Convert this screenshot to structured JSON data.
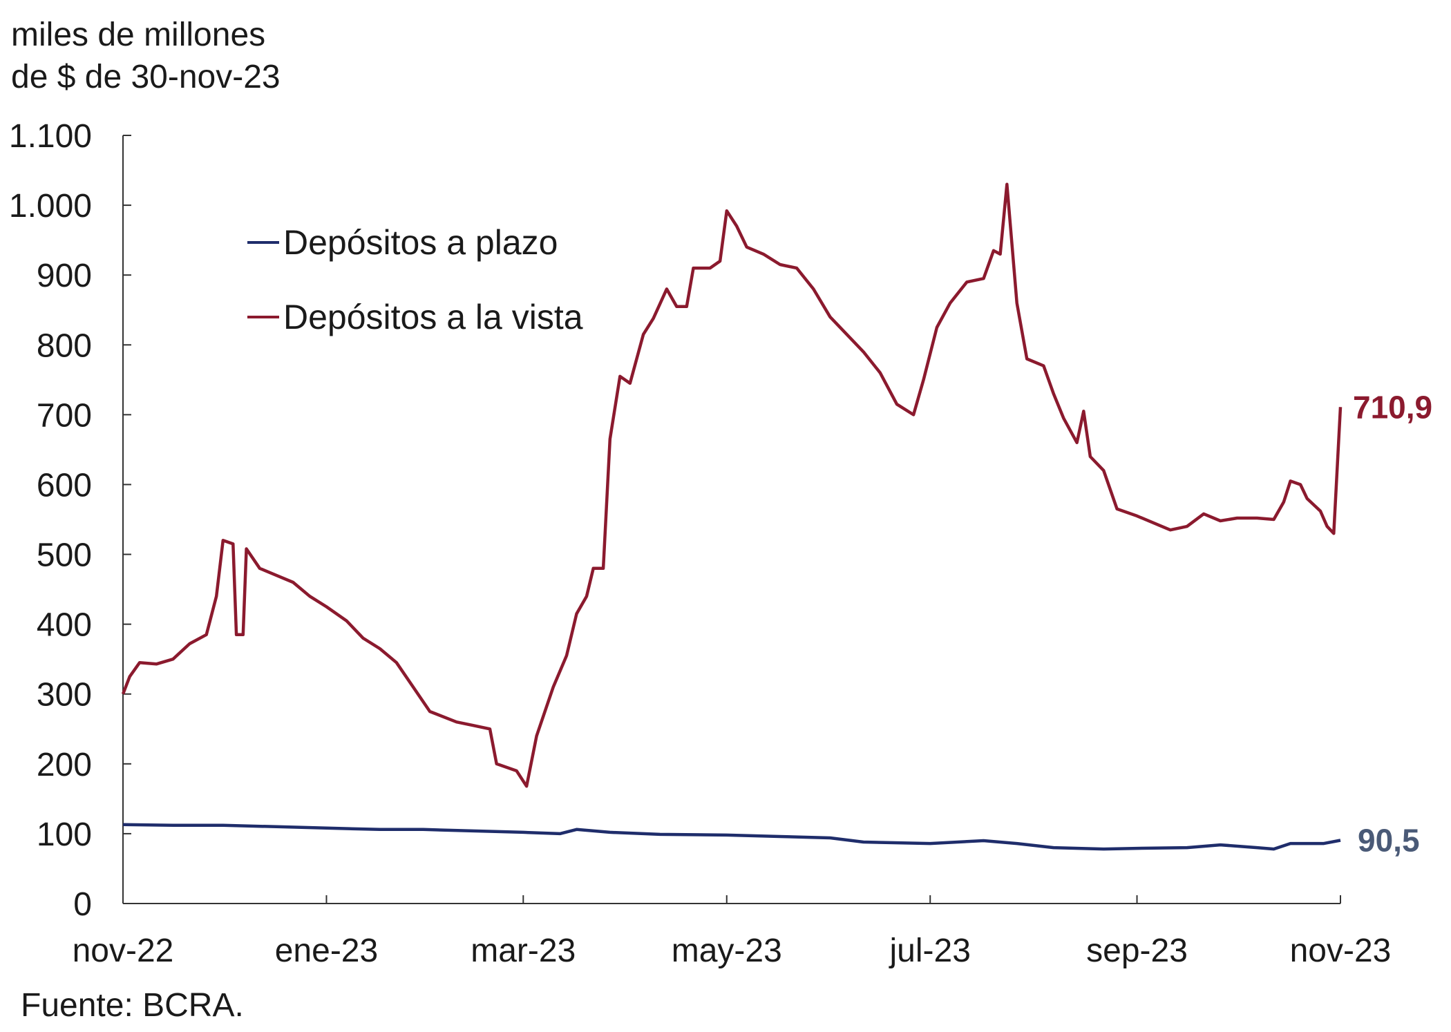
{
  "chart_data": {
    "type": "line",
    "unit_label_lines": [
      "miles de millones",
      "de $ de 30-nov-23"
    ],
    "ylim": [
      0,
      1100
    ],
    "y_ticks": [
      0,
      100,
      200,
      300,
      400,
      500,
      600,
      700,
      800,
      900,
      1000,
      1100
    ],
    "y_tick_labels": [
      "0",
      "100",
      "200",
      "300",
      "400",
      "500",
      "600",
      "700",
      "800",
      "900",
      "1.000",
      "1.100"
    ],
    "xlim": [
      "2022-11-30",
      "2023-11-30"
    ],
    "x_ticks": [
      "2022-11-30",
      "2023-01-30",
      "2023-03-30",
      "2023-05-30",
      "2023-07-30",
      "2023-09-30",
      "2023-11-30"
    ],
    "x_tick_labels": [
      "nov-22",
      "ene-23",
      "mar-23",
      "may-23",
      "jul-23",
      "sep-23",
      "nov-23"
    ],
    "grid": false,
    "legend_position": "upper-left",
    "series": [
      {
        "name": "Depósitos a plazo",
        "color": "#1f2d6b",
        "end_label": "90,5",
        "end_label_color": "#4a5a77",
        "points": [
          [
            "2022-11-30",
            113
          ],
          [
            "2022-12-15",
            112
          ],
          [
            "2022-12-30",
            112
          ],
          [
            "2023-01-15",
            110
          ],
          [
            "2023-01-30",
            108
          ],
          [
            "2023-02-15",
            106
          ],
          [
            "2023-02-28",
            106
          ],
          [
            "2023-03-15",
            104
          ],
          [
            "2023-03-30",
            102
          ],
          [
            "2023-04-10",
            100
          ],
          [
            "2023-04-15",
            106
          ],
          [
            "2023-04-25",
            102
          ],
          [
            "2023-05-10",
            99
          ],
          [
            "2023-05-30",
            98
          ],
          [
            "2023-06-15",
            96
          ],
          [
            "2023-06-30",
            94
          ],
          [
            "2023-07-10",
            88
          ],
          [
            "2023-07-30",
            86
          ],
          [
            "2023-08-15",
            90
          ],
          [
            "2023-08-25",
            86
          ],
          [
            "2023-09-05",
            80
          ],
          [
            "2023-09-20",
            78
          ],
          [
            "2023-09-30",
            79
          ],
          [
            "2023-10-15",
            80
          ],
          [
            "2023-10-25",
            84
          ],
          [
            "2023-11-05",
            80
          ],
          [
            "2023-11-10",
            78
          ],
          [
            "2023-11-15",
            86
          ],
          [
            "2023-11-25",
            86
          ],
          [
            "2023-11-30",
            90.5
          ]
        ]
      },
      {
        "name": "Depósitos a la vista",
        "color": "#8b1a2e",
        "end_label": "710,9",
        "end_label_color": "#8b1a2e",
        "points": [
          [
            "2022-11-30",
            300
          ],
          [
            "2022-12-02",
            325
          ],
          [
            "2022-12-05",
            345
          ],
          [
            "2022-12-10",
            343
          ],
          [
            "2022-12-15",
            350
          ],
          [
            "2022-12-20",
            372
          ],
          [
            "2022-12-25",
            385
          ],
          [
            "2022-12-28",
            440
          ],
          [
            "2022-12-30",
            520
          ],
          [
            "2023-01-02",
            515
          ],
          [
            "2023-01-03",
            385
          ],
          [
            "2023-01-05",
            385
          ],
          [
            "2023-01-06",
            508
          ],
          [
            "2023-01-10",
            480
          ],
          [
            "2023-01-15",
            470
          ],
          [
            "2023-01-20",
            460
          ],
          [
            "2023-01-25",
            440
          ],
          [
            "2023-01-30",
            425
          ],
          [
            "2023-02-05",
            405
          ],
          [
            "2023-02-10",
            380
          ],
          [
            "2023-02-15",
            365
          ],
          [
            "2023-02-20",
            345
          ],
          [
            "2023-02-25",
            310
          ],
          [
            "2023-03-02",
            275
          ],
          [
            "2023-03-10",
            260
          ],
          [
            "2023-03-15",
            255
          ],
          [
            "2023-03-20",
            250
          ],
          [
            "2023-03-22",
            200
          ],
          [
            "2023-03-28",
            190
          ],
          [
            "2023-03-31",
            168
          ],
          [
            "2023-04-03",
            240
          ],
          [
            "2023-04-08",
            310
          ],
          [
            "2023-04-12",
            355
          ],
          [
            "2023-04-15",
            415
          ],
          [
            "2023-04-18",
            440
          ],
          [
            "2023-04-20",
            480
          ],
          [
            "2023-04-23",
            480
          ],
          [
            "2023-04-25",
            665
          ],
          [
            "2023-04-28",
            755
          ],
          [
            "2023-05-01",
            745
          ],
          [
            "2023-05-05",
            815
          ],
          [
            "2023-05-08",
            838
          ],
          [
            "2023-05-12",
            880
          ],
          [
            "2023-05-15",
            855
          ],
          [
            "2023-05-18",
            855
          ],
          [
            "2023-05-20",
            910
          ],
          [
            "2023-05-25",
            910
          ],
          [
            "2023-05-28",
            920
          ],
          [
            "2023-05-30",
            992
          ],
          [
            "2023-06-02",
            970
          ],
          [
            "2023-06-05",
            940
          ],
          [
            "2023-06-10",
            930
          ],
          [
            "2023-06-15",
            915
          ],
          [
            "2023-06-20",
            910
          ],
          [
            "2023-06-25",
            880
          ],
          [
            "2023-06-30",
            840
          ],
          [
            "2023-07-05",
            815
          ],
          [
            "2023-07-10",
            790
          ],
          [
            "2023-07-15",
            760
          ],
          [
            "2023-07-20",
            715
          ],
          [
            "2023-07-25",
            700
          ],
          [
            "2023-07-28",
            750
          ],
          [
            "2023-08-01",
            825
          ],
          [
            "2023-08-05",
            860
          ],
          [
            "2023-08-10",
            890
          ],
          [
            "2023-08-15",
            895
          ],
          [
            "2023-08-18",
            935
          ],
          [
            "2023-08-20",
            930
          ],
          [
            "2023-08-22",
            1030
          ],
          [
            "2023-08-25",
            860
          ],
          [
            "2023-08-28",
            780
          ],
          [
            "2023-09-02",
            770
          ],
          [
            "2023-09-05",
            730
          ],
          [
            "2023-09-08",
            695
          ],
          [
            "2023-09-12",
            660
          ],
          [
            "2023-09-14",
            705
          ],
          [
            "2023-09-16",
            640
          ],
          [
            "2023-09-20",
            620
          ],
          [
            "2023-09-24",
            565
          ],
          [
            "2023-09-30",
            555
          ],
          [
            "2023-10-05",
            545
          ],
          [
            "2023-10-10",
            535
          ],
          [
            "2023-10-15",
            540
          ],
          [
            "2023-10-20",
            558
          ],
          [
            "2023-10-25",
            548
          ],
          [
            "2023-10-30",
            552
          ],
          [
            "2023-11-05",
            552
          ],
          [
            "2023-11-10",
            550
          ],
          [
            "2023-11-13",
            575
          ],
          [
            "2023-11-15",
            605
          ],
          [
            "2023-11-18",
            600
          ],
          [
            "2023-11-20",
            580
          ],
          [
            "2023-11-24",
            562
          ],
          [
            "2023-11-26",
            540
          ],
          [
            "2023-11-28",
            530
          ],
          [
            "2023-11-30",
            710.9
          ]
        ]
      }
    ]
  },
  "source_note": "Fuente: BCRA."
}
